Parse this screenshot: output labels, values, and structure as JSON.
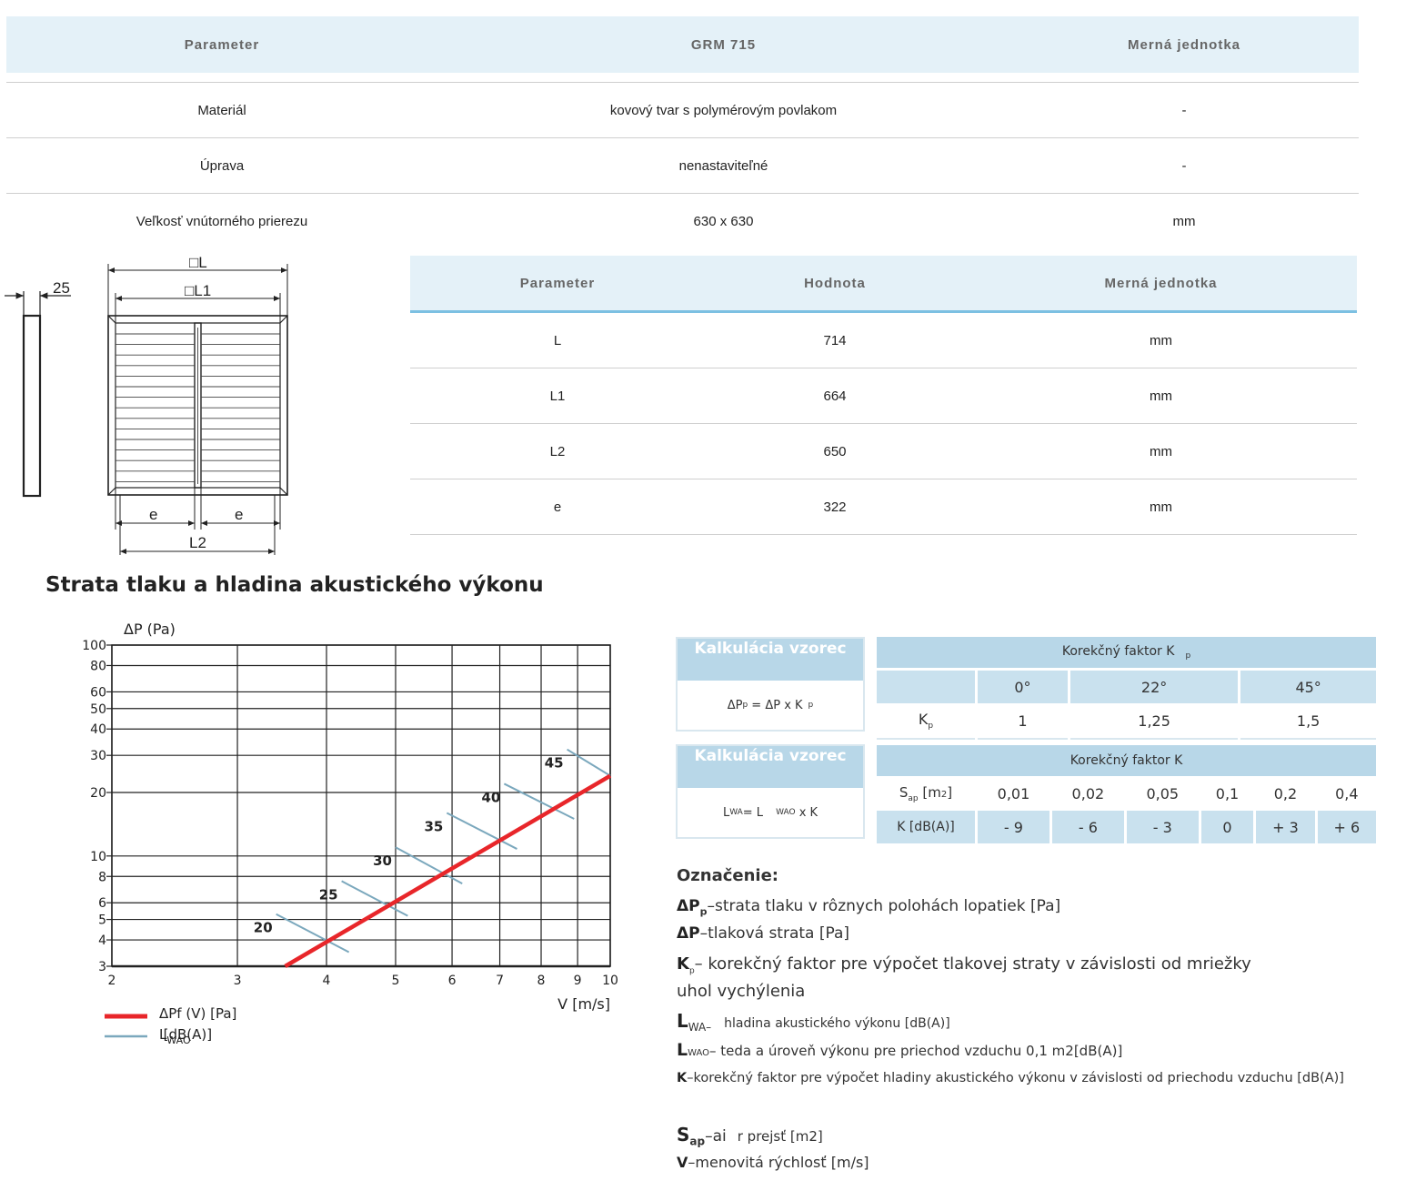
{
  "table1": {
    "headers": [
      "Parameter",
      "GRM 715",
      "Merná jednotka"
    ],
    "rows": [
      [
        "Materiál",
        "kovový tvar s polymérovým povlakom",
        "-"
      ],
      [
        "Úprava",
        "nenastaviteľné",
        "-"
      ],
      [
        "Veľkosť vnútorného prierezu",
        "630 x 630",
        "mm"
      ]
    ]
  },
  "drawing": {
    "labels": {
      "thickness": "25",
      "L": "□L",
      "L1": "□L1",
      "e1": "e",
      "e2": "e",
      "L2": "L2"
    }
  },
  "table2": {
    "headers": [
      "Parameter",
      "Hodnota",
      "Merná jednotka"
    ],
    "rows": [
      [
        "L",
        "714",
        "mm"
      ],
      [
        "L1",
        "664",
        "mm"
      ],
      [
        "L2",
        "650",
        "mm"
      ],
      [
        "e",
        "322",
        "mm"
      ]
    ]
  },
  "section_title": "Strata tlaku a hladina akustického výkonu",
  "chart_data": {
    "type": "line",
    "ylabel": "ΔP (Pa)",
    "xlabel": "V [m/s]",
    "xscale": "log",
    "yscale": "log",
    "xlim": [
      2,
      10
    ],
    "ylim": [
      3,
      100
    ],
    "x_ticks": [
      "2",
      "3",
      "4",
      "5",
      "6",
      "7",
      "8",
      "9",
      "10"
    ],
    "y_ticks": [
      "3",
      "4",
      "5",
      "6",
      "8",
      "10",
      "20",
      "30",
      "40",
      "50",
      "60",
      "80",
      "100"
    ],
    "grid": true,
    "series": [
      {
        "name": "ΔPf (V) [Pa]",
        "color": "#e8262a",
        "x": [
          3.5,
          10
        ],
        "y": [
          3,
          24
        ]
      }
    ],
    "lwa_lines": [
      {
        "label": "20",
        "from": [
          3.4,
          5.3
        ],
        "to": [
          4.3,
          3.5
        ]
      },
      {
        "label": "25",
        "from": [
          4.2,
          7.6
        ],
        "to": [
          5.2,
          5.2
        ]
      },
      {
        "label": "30",
        "from": [
          5.0,
          11
        ],
        "to": [
          6.2,
          7.4
        ]
      },
      {
        "label": "35",
        "from": [
          5.9,
          16
        ],
        "to": [
          7.4,
          10.8
        ]
      },
      {
        "label": "40",
        "from": [
          7.1,
          22
        ],
        "to": [
          8.9,
          15
        ]
      },
      {
        "label": "45",
        "from": [
          8.7,
          32
        ],
        "to": [
          10,
          24
        ]
      }
    ],
    "lwa_color": "#7ba8bd",
    "legend": [
      {
        "label": "ΔPf (V) [Pa]",
        "color": "#e8262a"
      },
      {
        "label": "L",
        "sub": "WAO",
        "suffix": "[dB(A)]",
        "color": "#7ba8bd"
      }
    ]
  },
  "calc1": {
    "title": "Kalkulácia vzorec",
    "formula": "ΔP p = ΔP x K p"
  },
  "calc2": {
    "title": "Kalkulácia vzorec",
    "formula": "L WA = L WAO x K"
  },
  "kp_table": {
    "title": "Korekčný faktor K p",
    "angles": [
      "0°",
      "22°",
      "45°"
    ],
    "row_label": "K p",
    "values": [
      "1",
      "1,25",
      "1,5"
    ]
  },
  "k_table": {
    "title": "Korekčný faktor K",
    "s_label": "S ap [m2]",
    "s_values": [
      "0,01",
      "0,02",
      "0,05",
      "0,1",
      "0,2",
      "0,4"
    ],
    "k_label": "K [dB(A)]",
    "k_values": [
      "- 9",
      "- 6",
      "- 3",
      "0",
      "+ 3",
      "+ 6"
    ]
  },
  "legend_text": {
    "heading": "Označenie:",
    "l1_sym": "ΔP",
    "l1_sub": "p",
    "l1_text": "–strata tlaku v rôznych polohách lopatiek [Pa]",
    "l2_sym": "ΔP",
    "l2_text": "–tlaková strata [Pa]",
    "l3_sym": "K",
    "l3_sub": "p",
    "l3_text": "– korekčný faktor pre výpočet tlakovej straty v závislosti od mriežky",
    "l3b_text": "uhol vychýlenia",
    "l4_sym": "L",
    "l4_sub": "WA–",
    "l4_text": "hladina akustického výkonu [dB(A)]",
    "l5_sym": "L",
    "l5_sub": "WAO",
    "l5_text": "– teda a úroveň výkonu pre priechod vzduchu 0,1 m2[dB(A)]",
    "l6_sym": "K",
    "l6_text": "–korekčný faktor pre výpočet hladiny akustického výkonu v závislosti od priechodu vzduchu [dB(A)]",
    "l7_sym": "S",
    "l7_sub": "ap",
    "l7_mid": "–ai",
    "l7_text": "r prejsť [m2]",
    "l8_sym": "V",
    "l8_text": "–menovitá rýchlosť [m/s]"
  }
}
